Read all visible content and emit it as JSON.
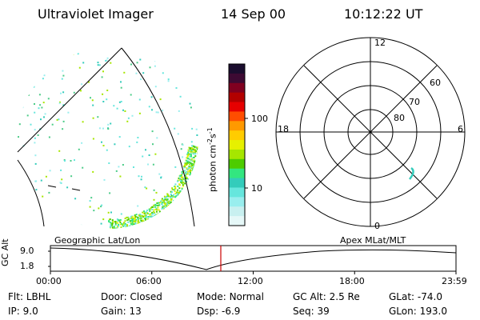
{
  "header": {
    "instrument": "Ultraviolet Imager",
    "date": "14 Sep 00",
    "time": "10:12:22 UT"
  },
  "colorbar": {
    "label_main": "photon cm",
    "label_sup1": "-2",
    "label_mid": "s",
    "label_sup2": "-1",
    "ticks": [
      "100",
      "10"
    ],
    "colors": [
      "#1a0d2e",
      "#3d0a33",
      "#800020",
      "#b30000",
      "#e60000",
      "#ff4d00",
      "#ff9900",
      "#ffcc00",
      "#e6f000",
      "#a6e600",
      "#4dcc00",
      "#33e680",
      "#33ccbb",
      "#66e6dd",
      "#99eeee",
      "#c8f0f0",
      "#e6f8f8"
    ]
  },
  "polar_plot": {
    "mlt_labels": [
      "12",
      "18",
      "6",
      "0"
    ],
    "lat_labels": [
      "60",
      "70",
      "80"
    ]
  },
  "map": {
    "left_label": "Geographic Lat/Lon",
    "right_label": "Apex MLat/MLT"
  },
  "altitude_panel": {
    "axis_label": "GC Alt",
    "ticks": [
      "9.0",
      "1.8"
    ],
    "time_ticks": [
      "00:00",
      "06:00",
      "12:00",
      "18:00",
      "23:59"
    ],
    "marker_time": "10:12",
    "marker_color": "#cc0000"
  },
  "info": [
    {
      "key": "Flt:",
      "value": "LBHL"
    },
    {
      "key": "Door:",
      "value": "Closed"
    },
    {
      "key": "Mode:",
      "value": "Normal"
    },
    {
      "key": "GC Alt:",
      "value": "2.5 Re"
    },
    {
      "key": "GLat:",
      "value": "-74.0"
    },
    {
      "key": "IP:",
      "value": "9.0"
    },
    {
      "key": "Gain:",
      "value": "13"
    },
    {
      "key": "Dsp:",
      "value": "-6.9"
    },
    {
      "key": "Seq:",
      "value": "39"
    },
    {
      "key": "GLon:",
      "value": "193.0"
    }
  ]
}
